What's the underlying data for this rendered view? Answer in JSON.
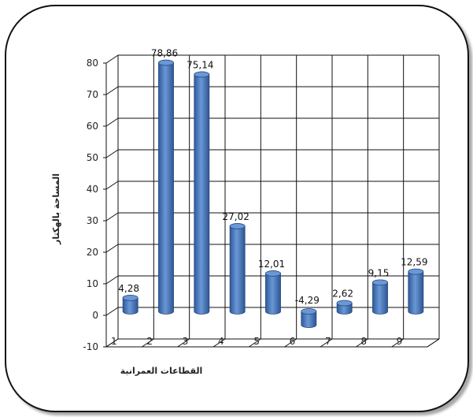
{
  "chart_data": {
    "type": "bar",
    "title": "",
    "xlabel": "القطاعات العمرانية",
    "ylabel": "المساحة بالهكتار",
    "categories": [
      "1",
      "2",
      "3",
      "4",
      "5",
      "6",
      "7",
      "8",
      "9"
    ],
    "values": [
      4.28,
      78.86,
      75.14,
      27.02,
      12.01,
      -4.29,
      2.62,
      9.15,
      12.59
    ],
    "value_labels": [
      "4,28",
      "78,86",
      "75,14",
      "27,02",
      "12,01",
      "-4,29",
      "2,62",
      "9,15",
      "12,59"
    ],
    "y_ticks": [
      "-10",
      "0",
      "10",
      "20",
      "30",
      "40",
      "50",
      "60",
      "70",
      "80"
    ],
    "ylim": [
      -10,
      80
    ],
    "grid": true,
    "legend": "none",
    "colors": {
      "bar": "#3f6fb6",
      "bar_highlight": "#6a98d6",
      "bar_shadow": "#24487e",
      "grid": "#111111",
      "wall": "#ffffff"
    }
  }
}
